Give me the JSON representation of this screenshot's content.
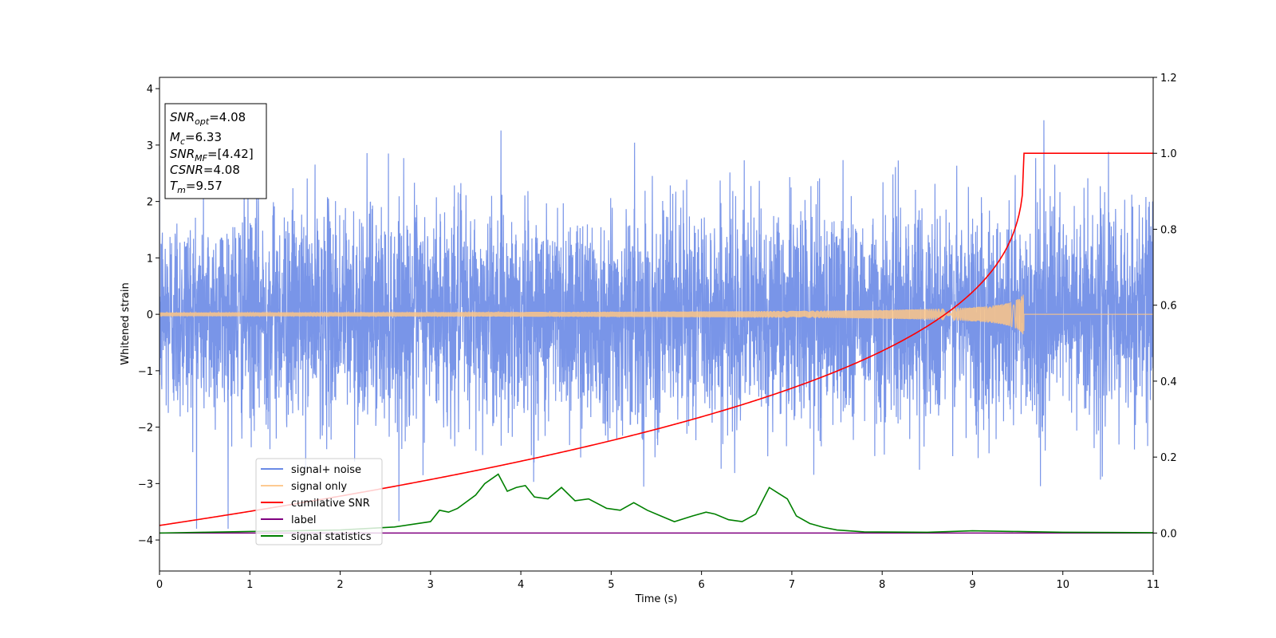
{
  "chart_data": {
    "type": "line",
    "xlabel": "Time (s)",
    "ylabel": "Whitened strain",
    "xlim": [
      0,
      11
    ],
    "ylim": [
      -4.55,
      4.2
    ],
    "ylim_right": [
      -0.1,
      1.2
    ],
    "xticks": [
      "0",
      "1",
      "2",
      "3",
      "4",
      "5",
      "6",
      "7",
      "8",
      "9",
      "10",
      "11"
    ],
    "yticks": [
      "−4",
      "−3",
      "−2",
      "−1",
      "0",
      "1",
      "2",
      "3",
      "4"
    ],
    "yticks_right": [
      "0.0",
      "0.2",
      "0.4",
      "0.6",
      "0.8",
      "1.0",
      "1.2"
    ],
    "grid": false,
    "legend_position": "lower-left",
    "info_box": {
      "lines": [
        {
          "sym": "SNR",
          "sub": "opt",
          "val": "=4.08"
        },
        {
          "sym": "M",
          "sub": "c",
          "val": "=6.33"
        },
        {
          "sym": "SNR",
          "sub": "MF",
          "val": "=[4.42]"
        },
        {
          "sym": "CSNR",
          "sub": "",
          "val": "=4.08"
        },
        {
          "sym": "T",
          "sub": "m",
          "val": "=9.57"
        }
      ]
    },
    "series": [
      {
        "name": "signal+ noise",
        "color": "#6a8ae6",
        "axis": "left",
        "noise_std": 0.95,
        "max_abs": 3.8
      },
      {
        "name": "signal only",
        "color": "#fdc586",
        "axis": "left",
        "merger_time": 9.57,
        "peak_amplitude": 0.45
      },
      {
        "name": "cumilative SNR",
        "color": "#ff0000",
        "axis": "right",
        "x": [
          0,
          1,
          2,
          3,
          4,
          5,
          6,
          7,
          8,
          8.5,
          9,
          9.3,
          9.5,
          9.57,
          11
        ],
        "y": [
          0.02,
          0.09,
          0.13,
          0.17,
          0.2,
          0.24,
          0.29,
          0.37,
          0.49,
          0.58,
          0.7,
          0.8,
          0.92,
          1.0,
          1.0
        ]
      },
      {
        "name": "label",
        "color": "#800080",
        "axis": "right",
        "x": [
          0,
          11
        ],
        "y": [
          0,
          0
        ]
      },
      {
        "name": "signal statistics",
        "color": "#008000",
        "axis": "right",
        "x": [
          0,
          0.5,
          1,
          1.5,
          2,
          2.3,
          2.6,
          3.0,
          3.1,
          3.2,
          3.3,
          3.5,
          3.6,
          3.75,
          3.85,
          3.95,
          4.05,
          4.15,
          4.3,
          4.45,
          4.6,
          4.75,
          4.95,
          5.1,
          5.25,
          5.4,
          5.55,
          5.7,
          5.9,
          6.05,
          6.15,
          6.3,
          6.45,
          6.6,
          6.75,
          6.85,
          6.95,
          7.05,
          7.2,
          7.35,
          7.5,
          7.8,
          8.5,
          9.0,
          9.5,
          10.0,
          11
        ],
        "y": [
          0,
          0.002,
          0.004,
          0.006,
          0.008,
          0.012,
          0.016,
          0.03,
          0.06,
          0.055,
          0.065,
          0.1,
          0.13,
          0.155,
          0.11,
          0.12,
          0.125,
          0.095,
          0.09,
          0.12,
          0.085,
          0.09,
          0.065,
          0.06,
          0.08,
          0.06,
          0.045,
          0.03,
          0.045,
          0.055,
          0.05,
          0.035,
          0.03,
          0.05,
          0.12,
          0.105,
          0.09,
          0.045,
          0.025,
          0.015,
          0.008,
          0.003,
          0.002,
          0.006,
          0.004,
          0.002,
          0.001
        ]
      }
    ]
  }
}
